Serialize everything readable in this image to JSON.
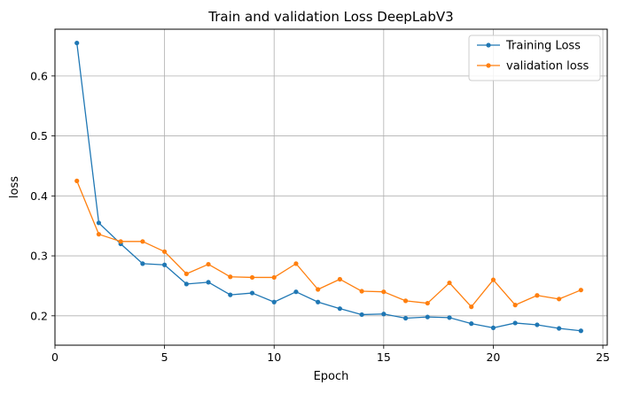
{
  "chart_data": {
    "type": "line",
    "title": "Train and validation Loss DeepLabV3",
    "xlabel": "Epoch",
    "ylabel": "loss",
    "xlim": [
      0,
      25.2
    ],
    "ylim": [
      0.151,
      0.678
    ],
    "xticks": [
      0,
      5,
      10,
      15,
      20,
      25
    ],
    "yticks": [
      0.2,
      0.3,
      0.4,
      0.5,
      0.6
    ],
    "grid": true,
    "legend": "top-right",
    "x": [
      1,
      2,
      3,
      4,
      5,
      6,
      7,
      8,
      9,
      10,
      11,
      12,
      13,
      14,
      15,
      16,
      17,
      18,
      19,
      20,
      21,
      22,
      23,
      24
    ],
    "series": [
      {
        "name": "Training Loss",
        "color": "#1f77b4",
        "values": [
          0.655,
          0.355,
          0.32,
          0.287,
          0.285,
          0.253,
          0.256,
          0.235,
          0.238,
          0.223,
          0.24,
          0.223,
          0.212,
          0.202,
          0.203,
          0.196,
          0.198,
          0.197,
          0.187,
          0.18,
          0.188,
          0.185,
          0.179,
          0.175
        ]
      },
      {
        "name": "validation loss",
        "color": "#ff7f0e",
        "values": [
          0.425,
          0.336,
          0.324,
          0.324,
          0.307,
          0.27,
          0.286,
          0.265,
          0.264,
          0.264,
          0.287,
          0.244,
          0.261,
          0.241,
          0.24,
          0.225,
          0.221,
          0.255,
          0.215,
          0.26,
          0.218,
          0.234,
          0.228,
          0.243
        ]
      }
    ]
  }
}
